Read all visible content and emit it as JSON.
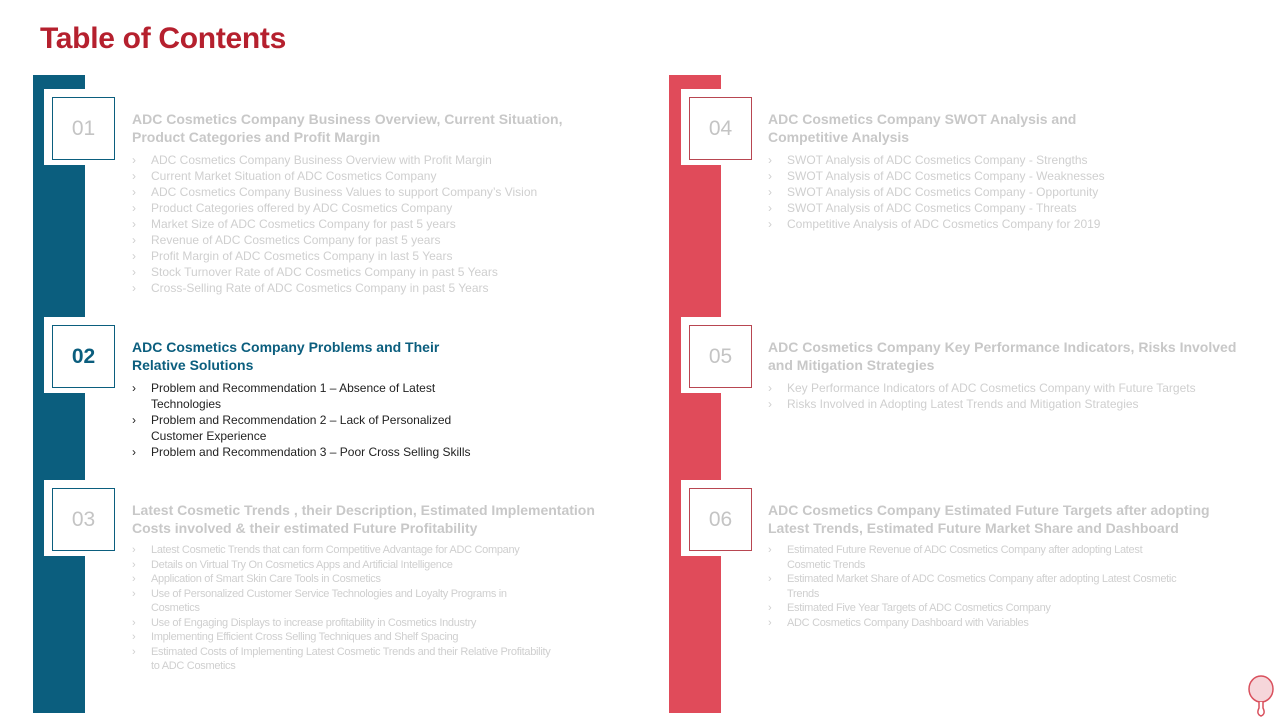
{
  "page_title": "Table of Contents",
  "colors": {
    "left_accent": "#0b5e7e",
    "right_accent": "#e04b5a",
    "title": "#b5202e"
  },
  "logo_icon": "hand-mirror-icon",
  "sections": [
    {
      "number": "01",
      "title": "ADC Cosmetics Company  Business Overview, Current Situation, Product Categories and Profit Margin",
      "items": [
        "ADC Cosmetics Company Business Overview  with Profit Margin",
        "Current  Market Situation of ADC Cosmetics Company",
        "ADC Cosmetics Company Business Values to support Company’s Vision",
        "Product Categories  offered  by ADC Cosmetics Company",
        "Market Size of ADC Cosmetics Company  for past 5 years",
        "Revenue  of ADC Cosmetics Company for  past 5 years",
        "Profit  Margin of ADC Cosmetics Company  in last 5 Years",
        "Stock Turnover  Rate of ADC Cosmetics Company in past 5 Years",
        "Cross-Selling Rate of ADC Cosmetics Company in past 5 Years"
      ]
    },
    {
      "number": "02",
      "title": "ADC Cosmetics Company Problems and Their Relative Solutions",
      "active": true,
      "items": [
        "Problem and Recommendation 1 – Absence of Latest Technologies",
        "Problem and Recommendation 2 – Lack of Personalized Customer Experience",
        "Problem and Recommendation 3 – Poor Cross Selling Skills"
      ]
    },
    {
      "number": "03",
      "title": "Latest Cosmetic Trends , their Description, Estimated Implementation Costs involved & their estimated Future Profitability",
      "items": [
        "Latest Cosmetic Trends that can form Competitive Advantage  for ADC Company",
        "Details on Virtual Try On Cosmetics Apps and Artificial Intelligence",
        "Application of Smart Skin Care Tools in Cosmetics",
        "Use of Personalized Customer Service Technologies and Loyalty Programs in Cosmetics",
        "Use of Engaging Displays to increase profitability in Cosmetics Industry",
        "Implementing Efficient Cross Selling Techniques and Shelf Spacing",
        "Estimated Costs of Implementing Latest Cosmetic Trends and their Relative Profitability to ADC  Cosmetics"
      ]
    },
    {
      "number": "04",
      "title": "ADC Cosmetics Company  SWOT Analysis  and Competitive Analysis",
      "items": [
        "SWOT Analysis of ADC Cosmetics Company  - Strengths",
        "SWOT Analysis of ADC Cosmetics Company  - Weaknesses",
        "SWOT Analysis of ADC Cosmetics Company  - Opportunity",
        "SWOT Analysis of ADC Cosmetics Company  - Threats",
        "Competitive  Analysis of ADC Cosmetics Company  for 2019"
      ]
    },
    {
      "number": "05",
      "title": "ADC Cosmetics Company Key Performance Indicators, Risks Involved and Mitigation Strategies",
      "items": [
        "Key Performance  Indicators of ADC Cosmetics Company with Future Targets",
        "Risks Involved  in Adopting Latest Trends  and Mitigation Strategies"
      ]
    },
    {
      "number": "06",
      "title": "ADC Cosmetics Company  Estimated Future Targets after adopting Latest Trends, Estimated Future Market Share and Dashboard",
      "items": [
        "Estimated Future Revenue of ADC  Cosmetics Company after adopting Latest Cosmetic Trends",
        "Estimated Market Share of ADC  Cosmetics Company after adopting Latest Cosmetic Trends",
        "Estimated Five Year Targets of ADC Cosmetics Company",
        "ADC  Cosmetics Company Dashboard with Variables"
      ]
    }
  ]
}
